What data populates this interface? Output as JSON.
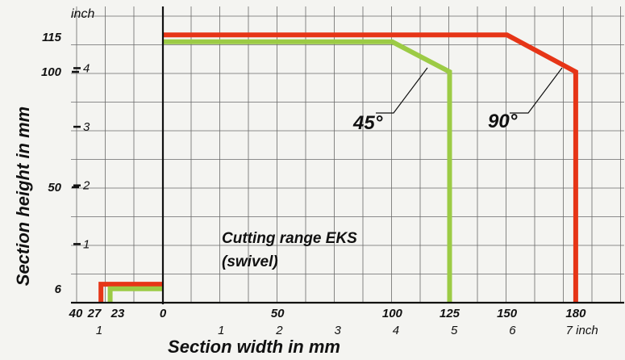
{
  "chart_data": {
    "type": "line",
    "title": "",
    "annotation_lines": [
      "Cutting range EKS",
      "(swivel)"
    ],
    "xlabel": "Section width in mm",
    "ylabel": "Section height in mm",
    "x_unit_secondary": "inch",
    "y_unit_secondary": "inch",
    "xlim": [
      -40,
      200
    ],
    "ylim": [
      0,
      125
    ],
    "grid": true,
    "x_ticks_mm": [
      {
        "value": -40,
        "label": "40"
      },
      {
        "value": -27,
        "label": "27"
      },
      {
        "value": -23,
        "label": "23"
      },
      {
        "value": 0,
        "label": "0"
      },
      {
        "value": 50,
        "label": "50"
      },
      {
        "value": 100,
        "label": "100"
      },
      {
        "value": 125,
        "label": "125"
      },
      {
        "value": 150,
        "label": "150"
      },
      {
        "value": 180,
        "label": "180"
      }
    ],
    "x_ticks_inch": [
      {
        "value": -1,
        "label": "1"
      },
      {
        "value": 1,
        "label": "1"
      },
      {
        "value": 2,
        "label": "2"
      },
      {
        "value": 3,
        "label": "3"
      },
      {
        "value": 4,
        "label": "4"
      },
      {
        "value": 5,
        "label": "5"
      },
      {
        "value": 6,
        "label": "6"
      },
      {
        "value": 7,
        "label": "7 inch"
      }
    ],
    "y_ticks_mm": [
      {
        "value": 6,
        "label": "6"
      },
      {
        "value": 50,
        "label": "50"
      },
      {
        "value": 100,
        "label": "100"
      },
      {
        "value": 115,
        "label": "115"
      }
    ],
    "y_ticks_inch": [
      {
        "value": 1,
        "label": "1"
      },
      {
        "value": 2,
        "label": "2"
      },
      {
        "value": 3,
        "label": "3"
      },
      {
        "value": 4,
        "label": "4"
      }
    ],
    "series": [
      {
        "name": "90°",
        "color": "#e63517",
        "main": [
          [
            0,
            116
          ],
          [
            150,
            116
          ],
          [
            180,
            100
          ],
          [
            180,
            0
          ]
        ],
        "left": [
          [
            -27,
            0
          ],
          [
            -27,
            8
          ],
          [
            0,
            8
          ]
        ]
      },
      {
        "name": "45°",
        "color": "#9ccb45",
        "main": [
          [
            0,
            113
          ],
          [
            100,
            113
          ],
          [
            125,
            100
          ],
          [
            125,
            0
          ]
        ],
        "left": [
          [
            -23,
            0
          ],
          [
            -23,
            6
          ],
          [
            0,
            6
          ]
        ]
      }
    ]
  }
}
